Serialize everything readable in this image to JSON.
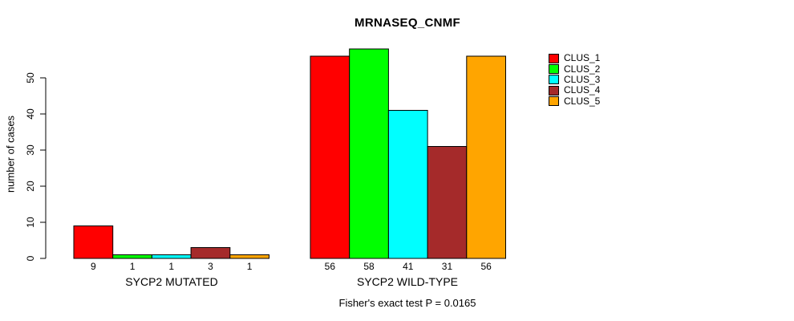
{
  "chart_data": {
    "type": "bar",
    "title": "MRNASEQ_CNMF",
    "xlabel": "",
    "ylabel": "number of cases",
    "ylim": [
      0,
      58
    ],
    "yticks": [
      0,
      10,
      20,
      30,
      40,
      50
    ],
    "grid": false,
    "legend_position": "top-right",
    "groups": [
      "SYCP2 MUTATED",
      "SYCP2 WILD-TYPE"
    ],
    "series": [
      {
        "name": "CLUS_1",
        "color": "#ff0000",
        "values": [
          9,
          56
        ]
      },
      {
        "name": "CLUS_2",
        "color": "#00ff00",
        "values": [
          1,
          58
        ]
      },
      {
        "name": "CLUS_3",
        "color": "#00ffff",
        "values": [
          1,
          41
        ]
      },
      {
        "name": "CLUS_4",
        "color": "#a52a2a",
        "values": [
          3,
          31
        ]
      },
      {
        "name": "CLUS_5",
        "color": "#ffa500",
        "values": [
          1,
          56
        ]
      }
    ],
    "bar_labels": [
      [
        "9",
        "1",
        "1",
        "3",
        "1"
      ],
      [
        "56",
        "58",
        "41",
        "31",
        "56"
      ]
    ],
    "annotation": "Fisher's exact test P = 0.0165",
    "bar_border_color": "#000000",
    "axis_color": "#000000"
  }
}
